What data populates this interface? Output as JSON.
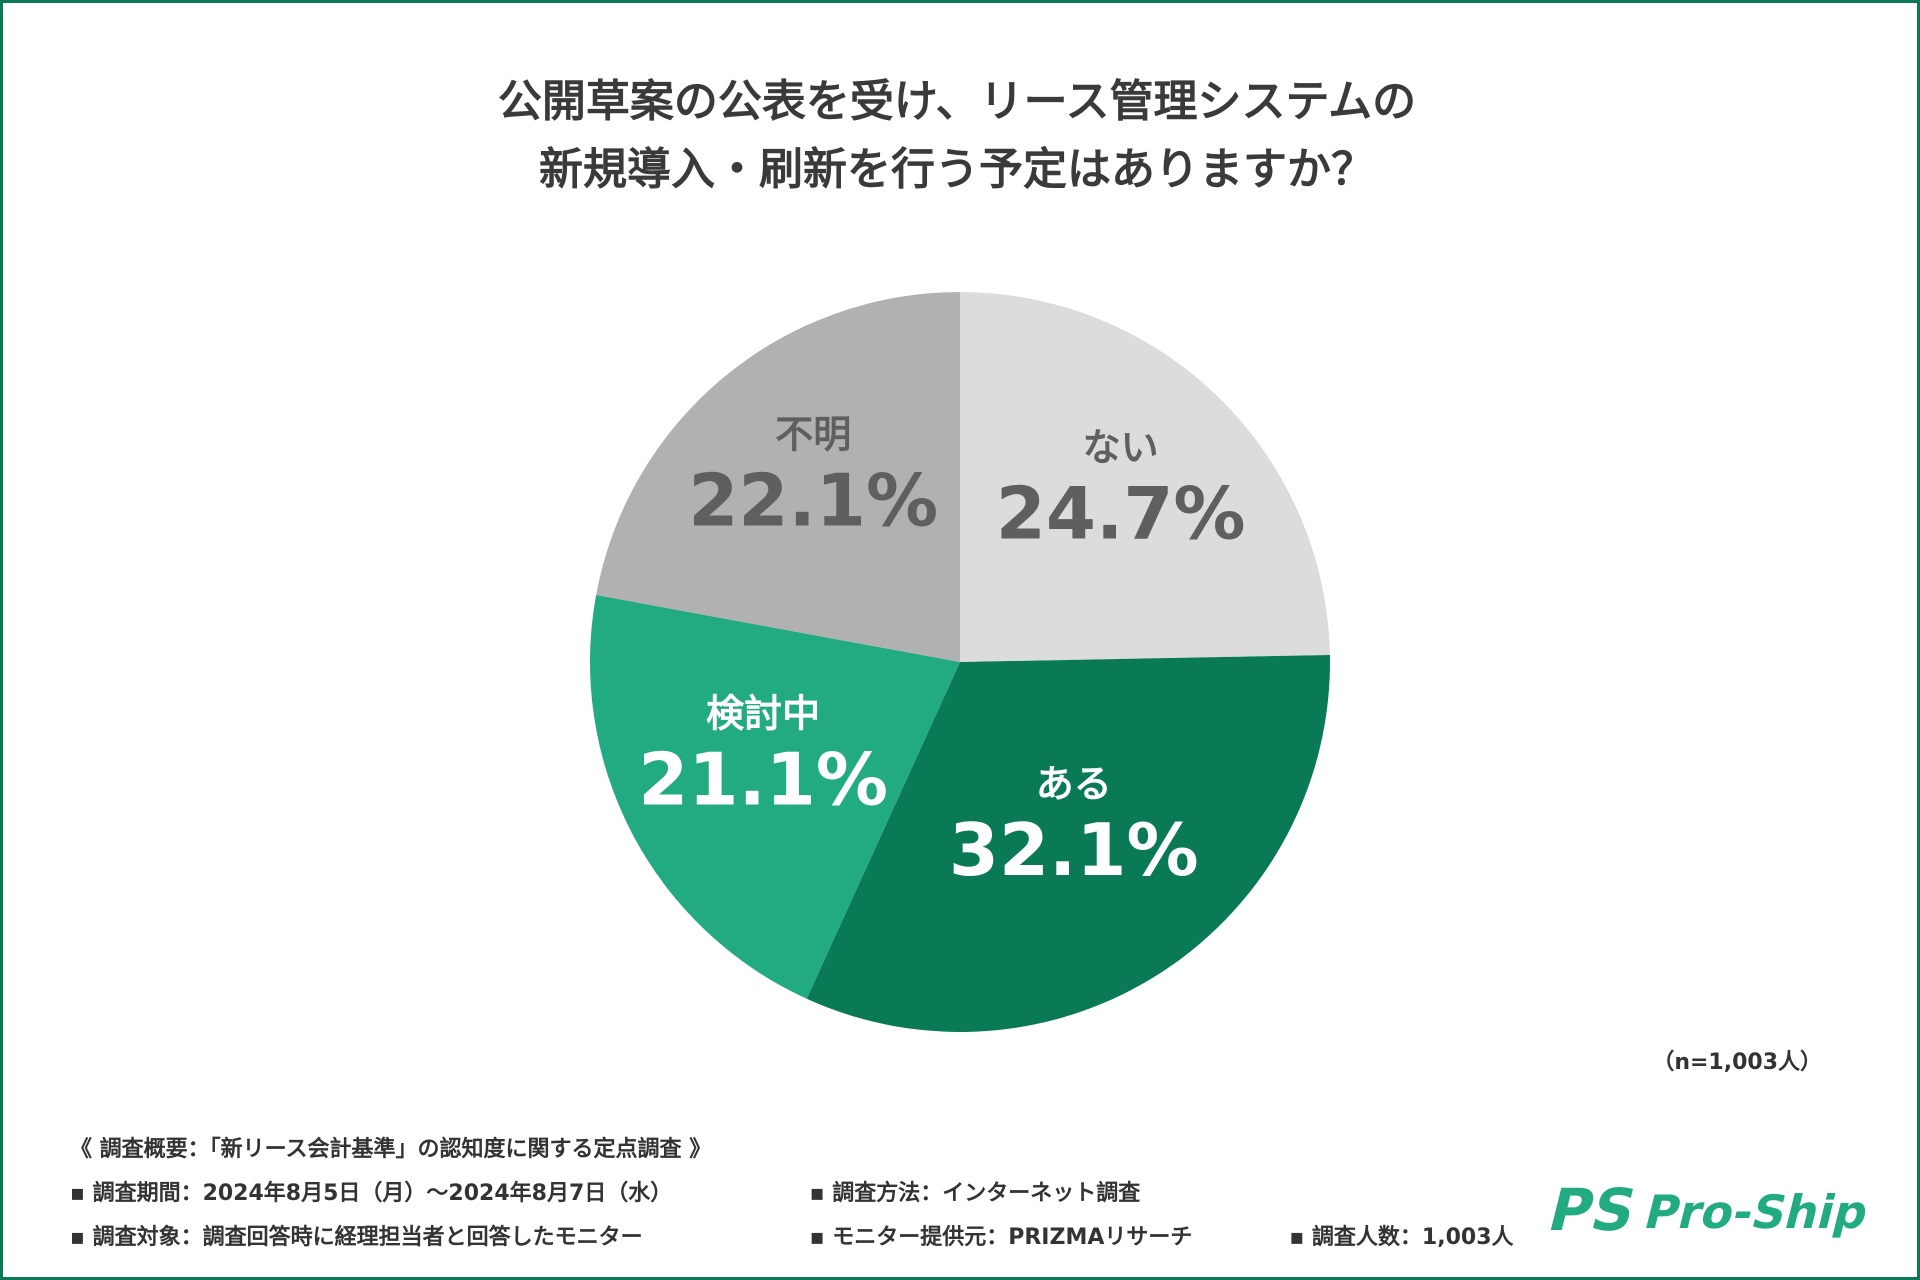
{
  "title": {
    "line1": "公開草案の公表を受け、リース管理システムの",
    "line2": "新規導入・刷新を行う予定はありますか？"
  },
  "chart_data": {
    "type": "pie",
    "categories": [
      "ない",
      "ある",
      "検討中",
      "不明"
    ],
    "values": [
      24.7,
      32.1,
      21.1,
      22.1
    ],
    "value_labels": [
      "24.7%",
      "32.1%",
      "21.1%",
      "22.1%"
    ],
    "colors": [
      "#dcdcdc",
      "#0a7a56",
      "#22ab83",
      "#b1b1b1"
    ],
    "label_colors": [
      "#5f5f5f",
      "#ffffff",
      "#ffffff",
      "#5f5f5f"
    ],
    "start": "12 o'clock",
    "direction": "clockwise"
  },
  "sample_size": "（n=1,003人）",
  "footer": {
    "heading": "《 調査概要：「新リース会計基準」の認知度に関する定点調査 》",
    "period": "▪ 調査期間：2024年8月5日（月）～2024年8月7日（水）",
    "method": "▪ 調査方法：インターネット調査",
    "target": "▪ 調査対象：調査回答時に経理担当者と回答したモニター",
    "provider": "▪ モニター提供元：PRIZMAリサーチ",
    "count": "▪ 調査人数：1,003人"
  },
  "logo": {
    "mark": "PS",
    "text": "Pro-Ship",
    "color": "#22ab83"
  }
}
